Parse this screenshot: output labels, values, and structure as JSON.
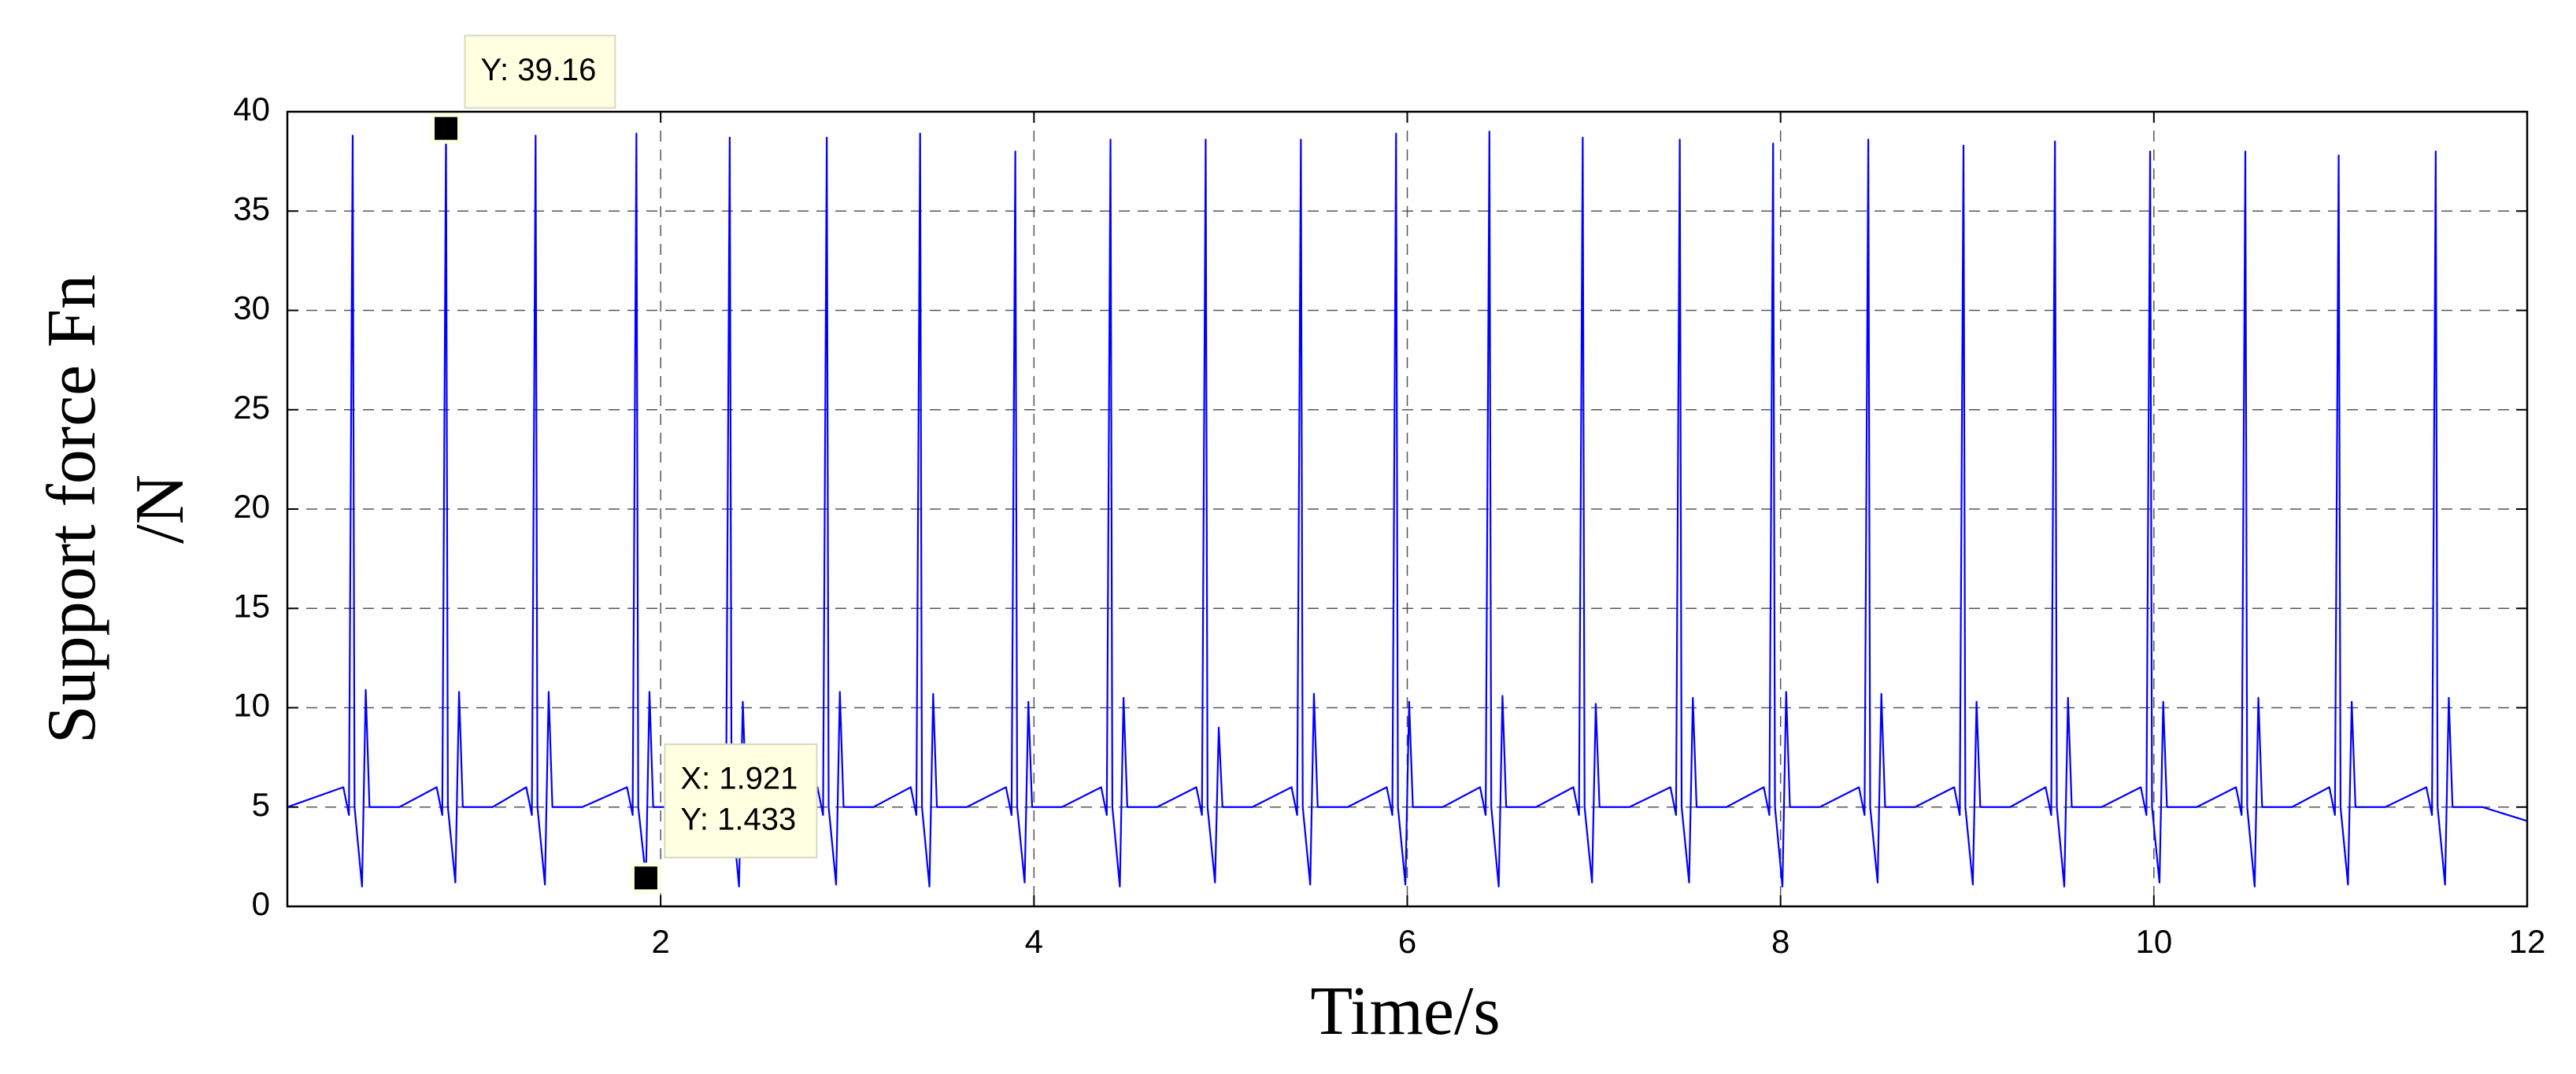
{
  "chart_data": {
    "type": "line",
    "xlabel": "Time/s",
    "ylabel": [
      "Support force Fn",
      "/N"
    ],
    "color": "#0000ff",
    "grid": true,
    "xlim": [
      0,
      12
    ],
    "xticks": [
      2,
      4,
      6,
      8,
      10,
      12
    ],
    "ylim": [
      0,
      40
    ],
    "yticks": [
      0,
      5,
      10,
      15,
      20,
      25,
      30,
      35,
      40
    ],
    "x": [
      0,
      0.3,
      0.33,
      0.35,
      0.36,
      0.4,
      0.42,
      0.44,
      0.6,
      0.8,
      0.83,
      0.85,
      0.86,
      0.9,
      0.92,
      0.94,
      1.1,
      1.28,
      1.31,
      1.33,
      1.34,
      1.38,
      1.4,
      1.42,
      1.58,
      1.82,
      1.85,
      1.87,
      1.88,
      1.921,
      1.94,
      1.96,
      2.12,
      2.32,
      2.35,
      2.37,
      2.38,
      2.42,
      2.44,
      2.46,
      2.62,
      2.84,
      2.87,
      2.89,
      2.9,
      2.94,
      2.96,
      2.98,
      3.14,
      3.34,
      3.37,
      3.39,
      3.4,
      3.44,
      3.46,
      3.48,
      3.64,
      3.85,
      3.88,
      3.9,
      3.91,
      3.95,
      3.97,
      3.99,
      4.15,
      4.36,
      4.39,
      4.41,
      4.42,
      4.46,
      4.48,
      4.5,
      4.66,
      4.87,
      4.9,
      4.92,
      4.93,
      4.97,
      4.99,
      5.01,
      5.17,
      5.38,
      5.41,
      5.43,
      5.44,
      5.48,
      5.5,
      5.52,
      5.68,
      5.89,
      5.92,
      5.94,
      5.95,
      5.99,
      6.01,
      6.03,
      6.19,
      6.39,
      6.42,
      6.44,
      6.45,
      6.49,
      6.51,
      6.53,
      6.69,
      6.89,
      6.92,
      6.94,
      6.95,
      6.99,
      7.01,
      7.03,
      7.19,
      7.41,
      7.44,
      7.46,
      7.47,
      7.51,
      7.53,
      7.55,
      7.71,
      7.91,
      7.94,
      7.96,
      7.97,
      8.01,
      8.03,
      8.05,
      8.21,
      8.42,
      8.45,
      8.47,
      8.48,
      8.52,
      8.54,
      8.56,
      8.72,
      8.93,
      8.96,
      8.98,
      8.99,
      9.03,
      9.05,
      9.07,
      9.23,
      9.42,
      9.45,
      9.47,
      9.48,
      9.52,
      9.54,
      9.56,
      9.72,
      9.93,
      9.96,
      9.98,
      9.99,
      10.03,
      10.05,
      10.07,
      10.23,
      10.44,
      10.47,
      10.49,
      10.5,
      10.54,
      10.56,
      10.58,
      10.74,
      10.94,
      10.97,
      10.99,
      11.0,
      11.04,
      11.06,
      11.08,
      11.24,
      11.46,
      11.49,
      11.51,
      11.52,
      11.56,
      11.58,
      11.6,
      11.76,
      12
    ],
    "values": [
      5.0,
      6.0,
      4.6,
      38.8,
      5.0,
      1.0,
      10.9,
      5.0,
      5.0,
      6.0,
      4.6,
      39.16,
      5.0,
      1.2,
      10.8,
      5.0,
      5.0,
      6.0,
      4.6,
      38.8,
      5.0,
      1.1,
      10.8,
      5.0,
      5.0,
      6.0,
      4.6,
      38.9,
      5.0,
      1.433,
      10.8,
      5.0,
      5.0,
      6.0,
      4.6,
      38.7,
      5.0,
      1.0,
      10.3,
      5.0,
      5.0,
      6.0,
      4.6,
      38.7,
      5.0,
      1.1,
      10.8,
      5.0,
      5.0,
      6.0,
      4.6,
      38.9,
      5.0,
      1.0,
      10.7,
      5.0,
      5.0,
      6.0,
      4.6,
      38.0,
      5.0,
      1.2,
      10.3,
      5.0,
      5.0,
      6.0,
      4.6,
      38.6,
      5.0,
      1.0,
      10.5,
      5.0,
      5.0,
      6.0,
      4.6,
      38.6,
      5.0,
      1.2,
      9.0,
      5.0,
      5.0,
      6.0,
      4.6,
      38.6,
      5.0,
      1.1,
      10.7,
      5.0,
      5.0,
      6.0,
      4.6,
      38.9,
      5.0,
      1.1,
      10.3,
      5.0,
      5.0,
      6.0,
      4.6,
      39.0,
      5.0,
      1.0,
      10.6,
      5.0,
      5.0,
      6.0,
      4.6,
      38.7,
      5.0,
      1.2,
      10.2,
      5.0,
      5.0,
      6.0,
      4.6,
      38.6,
      5.0,
      1.2,
      10.5,
      5.0,
      5.0,
      6.0,
      4.6,
      38.4,
      5.0,
      1.0,
      10.8,
      5.0,
      5.0,
      6.0,
      4.6,
      38.6,
      5.0,
      1.2,
      10.7,
      5.0,
      5.0,
      6.0,
      4.6,
      38.3,
      5.0,
      1.1,
      10.3,
      5.0,
      5.0,
      6.0,
      4.6,
      38.5,
      5.0,
      1.0,
      10.5,
      5.0,
      5.0,
      6.0,
      4.6,
      38.0,
      5.0,
      1.2,
      10.3,
      5.0,
      5.0,
      6.0,
      4.6,
      38.0,
      5.0,
      1.0,
      10.5,
      5.0,
      5.0,
      6.0,
      4.6,
      37.8,
      5.0,
      1.1,
      10.3,
      5.0,
      5.0,
      6.0,
      4.6,
      38.0,
      5.0,
      1.1,
      10.5,
      5.0,
      5.0,
      4.3
    ],
    "annotations": [
      {
        "x": 0.85,
        "y": 39.16,
        "lines": [
          "Y: 39.16"
        ]
      },
      {
        "x": 1.921,
        "y": 1.433,
        "lines": [
          "X: 1.921",
          "Y: 1.433"
        ]
      }
    ]
  }
}
